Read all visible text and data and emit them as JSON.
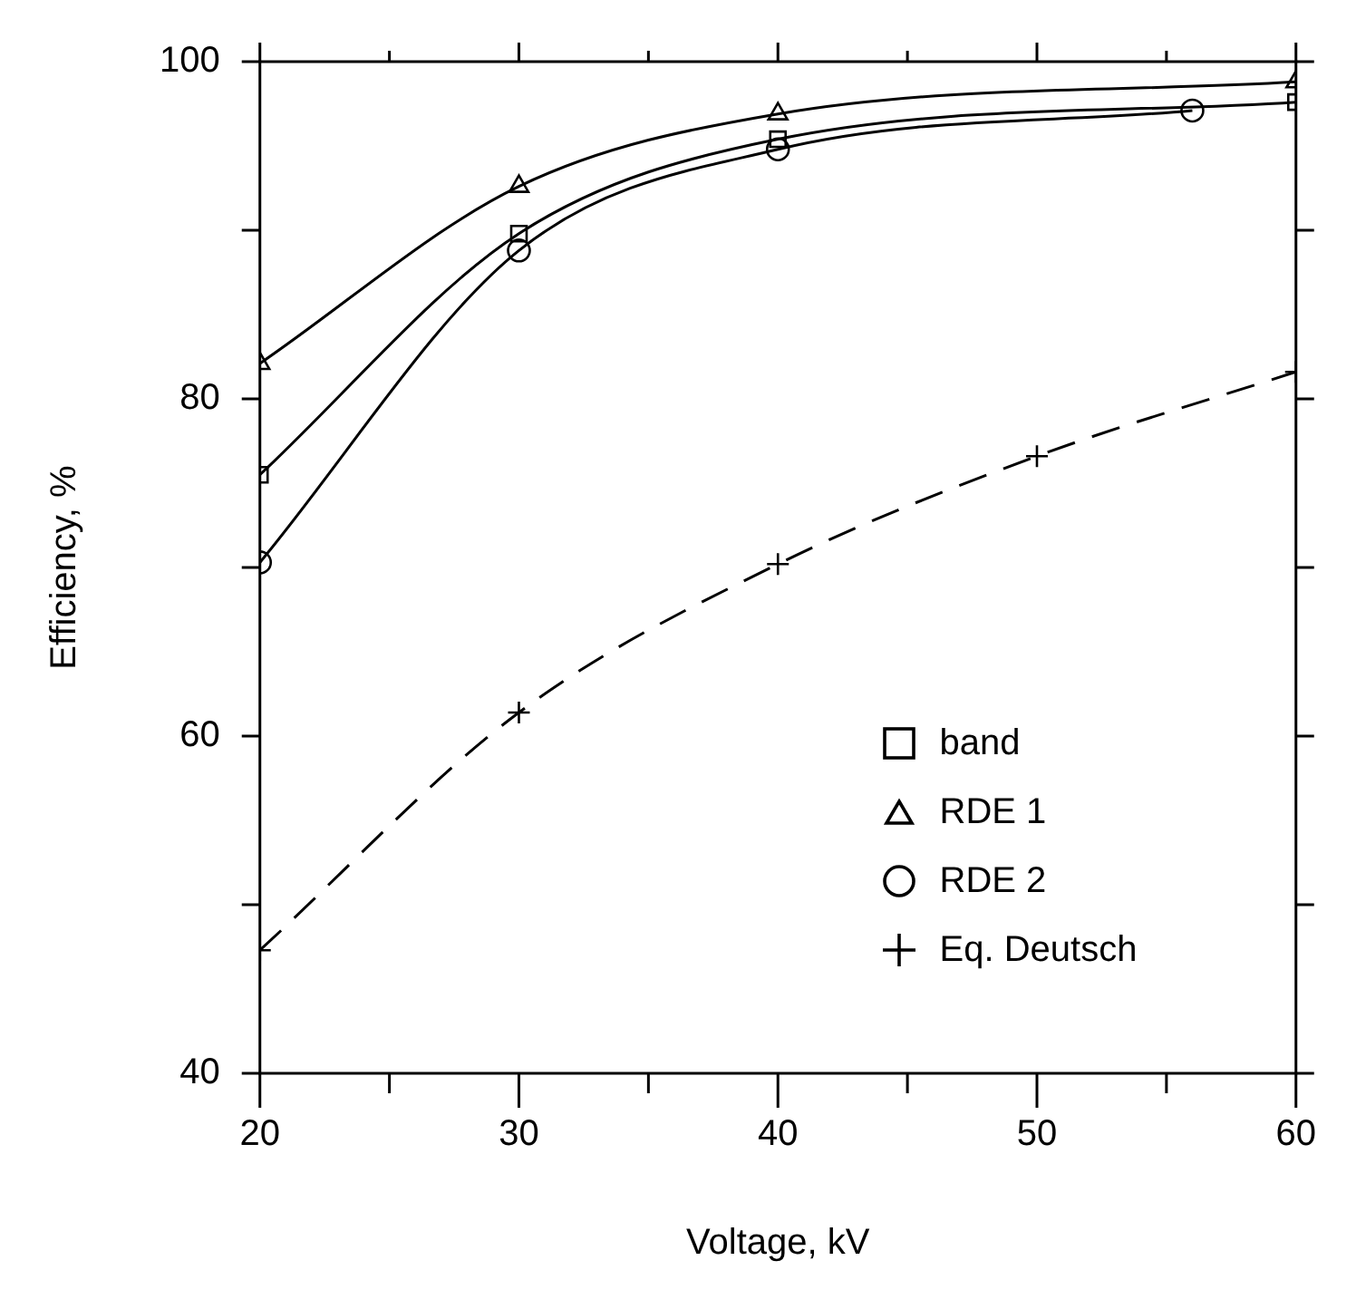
{
  "chart_data": {
    "type": "line",
    "xlabel": "Voltage, kV",
    "ylabel": "Efficiency, %",
    "xlim": [
      20,
      60
    ],
    "xticks": [
      20,
      {
        "value": 25,
        "label": null
      },
      30,
      {
        "value": 35,
        "label": null
      },
      40,
      {
        "value": 45,
        "label": null
      },
      50,
      {
        "value": 55,
        "label": null
      },
      60
    ],
    "ylim": [
      40,
      100
    ],
    "yticks": [
      40,
      {
        "value": 50,
        "label": null
      },
      60,
      {
        "value": 70,
        "label": null
      },
      80,
      {
        "value": 90,
        "label": null
      },
      100
    ],
    "grid": false,
    "legend": "bottom right",
    "series": [
      {
        "name": "band",
        "color": "#000000",
        "marker": "square",
        "line_style": "solid",
        "x": [
          20,
          30,
          40,
          60
        ],
        "values": [
          75.5,
          89.8,
          95.4,
          97.6
        ]
      },
      {
        "name": "RDE 1",
        "color": "#000000",
        "marker": "triangle",
        "line_style": "solid",
        "x": [
          20,
          30,
          40,
          60
        ],
        "values": [
          82.1,
          92.6,
          96.9,
          98.8
        ]
      },
      {
        "name": "RDE 2",
        "color": "#000000",
        "marker": "circle",
        "line_style": "solid",
        "x": [
          20,
          30,
          40,
          56
        ],
        "values": [
          70.3,
          88.8,
          94.8,
          97.1
        ]
      },
      {
        "name": "Eq. Deutsch",
        "color": "#000000",
        "marker": "cross",
        "line_style": "dashed",
        "x": [
          20,
          30,
          40,
          50,
          60
        ],
        "values": [
          47.3,
          61.4,
          70.2,
          76.6,
          81.6
        ]
      }
    ]
  }
}
